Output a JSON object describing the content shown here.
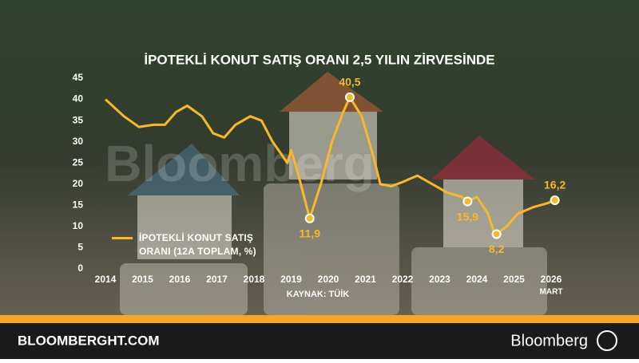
{
  "chart_data": {
    "type": "line",
    "title": "İPOTEKLİ KONUT SATIŞ ORANI 2,5 YILIN ZİRVESİNDE",
    "x": [
      2014.0,
      2014.5,
      2014.9,
      2015.3,
      2015.6,
      2015.9,
      2016.2,
      2016.6,
      2016.9,
      2017.2,
      2017.5,
      2017.9,
      2018.2,
      2018.5,
      2018.9,
      2019.0,
      2019.2,
      2019.5,
      2019.8,
      2020.1,
      2020.4,
      2020.58,
      2020.9,
      2021.2,
      2021.4,
      2021.7,
      2022.0,
      2022.4,
      2022.8,
      2023.2,
      2023.6,
      2023.75,
      2024.0,
      2024.3,
      2024.45,
      2024.53,
      2024.8,
      2025.1,
      2025.5,
      2025.9,
      2026.1
    ],
    "series": [
      {
        "name": "İPOTEKLİ KONUT SATIŞ ORANI (12A TOPLAM, %)",
        "color": "#f7b928",
        "values": [
          40,
          36,
          33.5,
          34,
          34,
          37,
          38.5,
          36,
          32,
          31,
          34,
          36,
          35,
          30,
          25,
          28,
          22,
          11.9,
          20,
          30,
          37,
          40.5,
          36,
          27,
          20,
          19.5,
          20.5,
          22,
          20,
          18,
          17,
          15.9,
          17,
          13,
          9,
          8.2,
          10,
          13,
          14.5,
          15.5,
          16.2
        ],
        "value_labels": [
          null,
          null,
          null,
          null,
          null,
          null,
          null,
          null,
          null,
          null,
          null,
          null,
          null,
          null,
          null,
          null,
          null,
          "11,9",
          null,
          null,
          null,
          "40,5",
          null,
          null,
          null,
          null,
          null,
          null,
          null,
          null,
          null,
          "15,9",
          null,
          null,
          null,
          "8,2",
          null,
          null,
          null,
          null,
          "16,2"
        ]
      }
    ],
    "xlim": [
      2014,
      2026
    ],
    "xticks": [
      2014,
      2015,
      2016,
      2017,
      2018,
      2019,
      2020,
      2021,
      2022,
      2023,
      2024,
      2025,
      2026
    ],
    "x_note": "MART",
    "ylim": [
      0,
      45
    ],
    "yticks": [
      0,
      5,
      10,
      15,
      20,
      25,
      30,
      35,
      40,
      45
    ],
    "source": "KAYNAK: TÜİK",
    "watermark": "Bloomberg",
    "footer": {
      "site": "BLOOMBERGHT.COM",
      "brand": "Bloomberg"
    }
  }
}
